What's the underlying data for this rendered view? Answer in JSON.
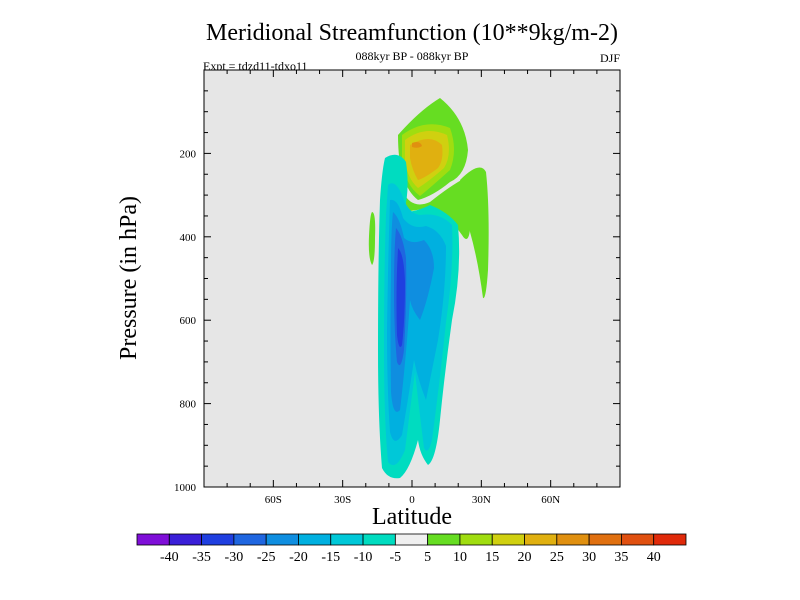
{
  "chart_data": {
    "type": "contour",
    "title": "Meridional Streamfunction (10**9kg/m-2)",
    "subtitle": "088kyr BP - 088kyr BP",
    "left_label": "Expt = tdzd11-tdxo11",
    "right_label": "DJF",
    "xlabel": "Latitude",
    "ylabel": "Pressure (in hPa)",
    "xlim": [
      -90,
      90
    ],
    "ylim": [
      1000,
      0
    ],
    "x_ticks": [
      {
        "value": -60,
        "label": "60S"
      },
      {
        "value": -30,
        "label": "30S"
      },
      {
        "value": 0,
        "label": "0"
      },
      {
        "value": 30,
        "label": "30N"
      },
      {
        "value": 60,
        "label": "60N"
      }
    ],
    "y_ticks": [
      {
        "value": 200,
        "label": "200"
      },
      {
        "value": 400,
        "label": "400"
      },
      {
        "value": 600,
        "label": "600"
      },
      {
        "value": 800,
        "label": "800"
      },
      {
        "value": 1000,
        "label": "1000"
      }
    ],
    "colorbar": {
      "labels": [
        "-40",
        "-35",
        "-30",
        "-25",
        "-20",
        "-15",
        "-10",
        "-5",
        "5",
        "10",
        "15",
        "20",
        "25",
        "30",
        "35",
        "40"
      ],
      "colors": [
        "#7f0fd8",
        "#3a1fd8",
        "#1f3fe0",
        "#1f66e0",
        "#0f8ee0",
        "#00b0e0",
        "#00c8d8",
        "#00dcc0",
        "#f0f0f0",
        "#66dd22",
        "#a0dd10",
        "#d0d010",
        "#e0b010",
        "#e09010",
        "#e07010",
        "#e05010",
        "#e02a0a"
      ]
    },
    "features": [
      {
        "name": "negative-cell",
        "description": "southern hemisphere indirect cell",
        "lat_range": [
          -10,
          5
        ],
        "p_range": [
          240,
          980
        ],
        "min_value": -30
      },
      {
        "name": "positive-cell-upper",
        "lat_range": [
          -3,
          15
        ],
        "p_range": [
          70,
          290
        ],
        "max_value": 25
      },
      {
        "name": "positive-cell-right",
        "lat_range": [
          22,
          30
        ],
        "p_range": [
          210,
          550
        ],
        "max_value": 5
      },
      {
        "name": "positive-cell-left",
        "lat_range": [
          -17,
          -15
        ],
        "p_range": [
          360,
          470
        ],
        "max_value": 5
      }
    ]
  }
}
